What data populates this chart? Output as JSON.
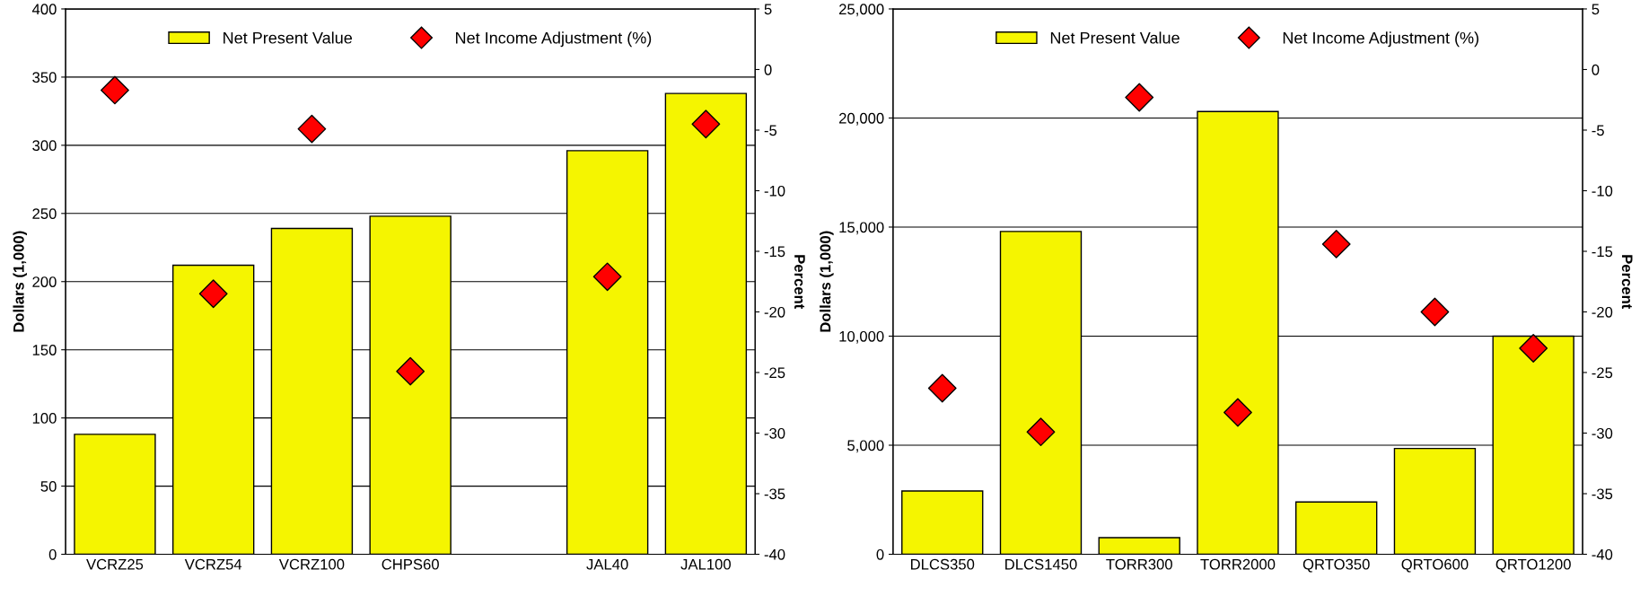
{
  "chart_data": [
    {
      "type": "bar",
      "categories": [
        "VCRZ25",
        "VCRZ54",
        "VCRZ100",
        "CHPS60",
        null,
        "JAL40",
        "JAL100"
      ],
      "ylabel": "Dollars (1,000)",
      "y2label": "Percent",
      "series": [
        {
          "name": "Net Present Value",
          "color": "#f5f500",
          "values": [
            88,
            212,
            239,
            248,
            null,
            296,
            338
          ]
        },
        {
          "name": "Net Income Adjustment (%)",
          "type": "scatter",
          "axis": "y2",
          "color": "#ff0000",
          "marker": "diamond",
          "values": [
            -1.7,
            -18.5,
            -4.9,
            -24.9,
            null,
            -17.1,
            -4.5
          ]
        }
      ],
      "ylim": [
        0,
        400
      ],
      "yticks": [
        0,
        50,
        100,
        150,
        200,
        250,
        300,
        350,
        400
      ],
      "y2lim": [
        -40,
        5
      ],
      "y2ticks": [
        -40,
        -35,
        -30,
        -25,
        -20,
        -15,
        -10,
        -5,
        0,
        5
      ],
      "grid": "y",
      "legend": "top"
    },
    {
      "type": "bar",
      "categories": [
        "DLCS350",
        "DLCS1450",
        "TORR300",
        "TORR2000",
        "QRTO350",
        "QRTO600",
        "QRTO1200"
      ],
      "ylabel": "Dollars (1,000)",
      "y2label": "Percent",
      "series": [
        {
          "name": "Net Present Value",
          "color": "#f5f500",
          "values": [
            2900,
            14800,
            760,
            20300,
            2400,
            4850,
            10000
          ]
        },
        {
          "name": "Net Income Adjustment (%)",
          "type": "scatter",
          "axis": "y2",
          "color": "#ff0000",
          "marker": "diamond",
          "values": [
            -26.3,
            -29.9,
            -2.3,
            -28.3,
            -14.4,
            -20,
            -23
          ]
        }
      ],
      "ylim": [
        0,
        25000
      ],
      "yticks": [
        0,
        {
          "value": 5000,
          "label": "5,000"
        },
        {
          "value": 10000,
          "label": "10,000"
        },
        {
          "value": 15000,
          "label": "15,000"
        },
        {
          "value": 20000,
          "label": "20,000"
        },
        {
          "value": 25000,
          "label": "25,000"
        }
      ],
      "y2lim": [
        -40,
        5
      ],
      "y2ticks": [
        -40,
        -35,
        -30,
        -25,
        -20,
        -15,
        -10,
        -5,
        0,
        5
      ],
      "grid": "y",
      "legend": "top"
    }
  ]
}
